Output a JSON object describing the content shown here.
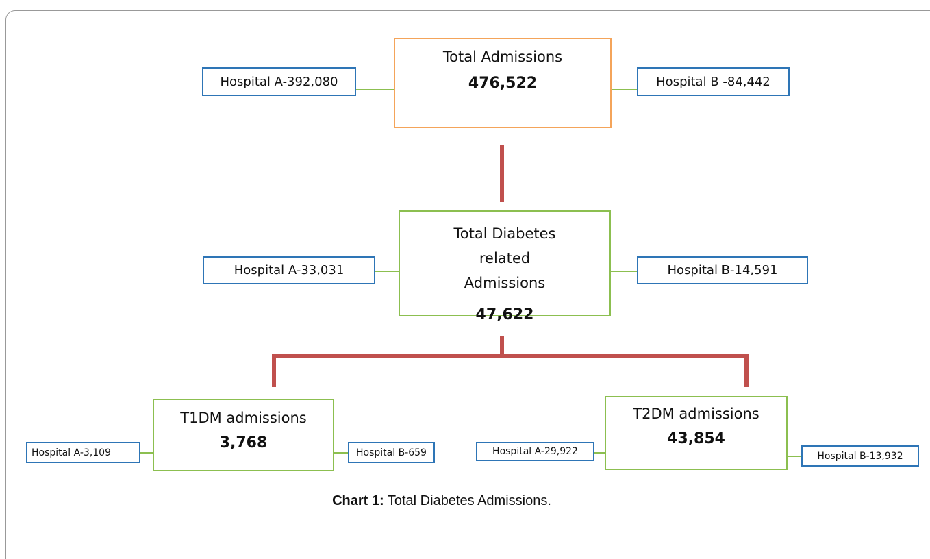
{
  "nodes": [
    {
      "label": "Total Admissions",
      "value": "476,522"
    },
    {
      "label": "Total Diabetes related Admissions",
      "value": "47,622"
    },
    {
      "label": "T1DM admissions",
      "value": "3,768"
    },
    {
      "label": "T2DM admissions",
      "value": "43,854"
    }
  ],
  "side_boxes": [
    "Hospital A-392,080",
    "Hospital B -84,442",
    "Hospital A-33,031",
    "Hospital B-14,591",
    "Hospital A-3,109",
    "Hospital B-659",
    "Hospital A-29,922",
    "Hospital B-13,932"
  ],
  "caption": {
    "label": "Chart 1:",
    "text": "Total Diabetes Admissions."
  }
}
